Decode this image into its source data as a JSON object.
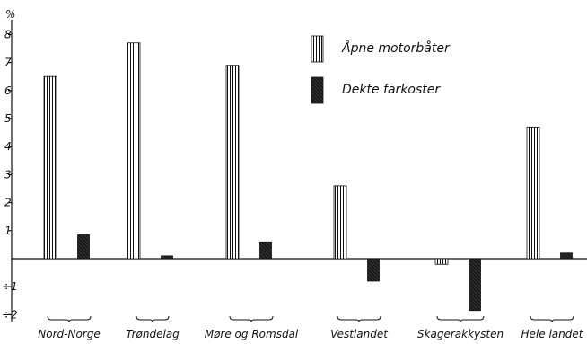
{
  "chart_data": {
    "type": "bar",
    "ylabel": "%",
    "ylim": [
      -2,
      8
    ],
    "yticks": [
      {
        "value": 8,
        "label": "8"
      },
      {
        "value": 7,
        "label": "7"
      },
      {
        "value": 6,
        "label": "6"
      },
      {
        "value": 5,
        "label": "5"
      },
      {
        "value": 4,
        "label": "4"
      },
      {
        "value": 3,
        "label": "3"
      },
      {
        "value": 2,
        "label": "2"
      },
      {
        "value": 1,
        "label": "1"
      },
      {
        "value": -1,
        "label": "÷1"
      },
      {
        "value": -2,
        "label": "÷2"
      }
    ],
    "categories": [
      "Nord-Norge",
      "Trøndelag",
      "Møre og Romsdal",
      "Vestlandet",
      "Skagerakkysten",
      "Hele landet"
    ],
    "series": [
      {
        "name": "Åpne motorbåter",
        "pattern": "vertical-hatch",
        "values": [
          6.5,
          7.7,
          6.9,
          2.6,
          -0.2,
          4.7
        ]
      },
      {
        "name": "Dekte farkoster",
        "pattern": "solid-dark",
        "values": [
          0.85,
          0.1,
          0.6,
          -0.8,
          -1.85,
          0.2
        ]
      }
    ],
    "legend_position": "top-right",
    "grid": false,
    "colors": {
      "ink": "#111111",
      "dark_bar": "#1a1a1a",
      "paper": "#ffffff"
    }
  }
}
